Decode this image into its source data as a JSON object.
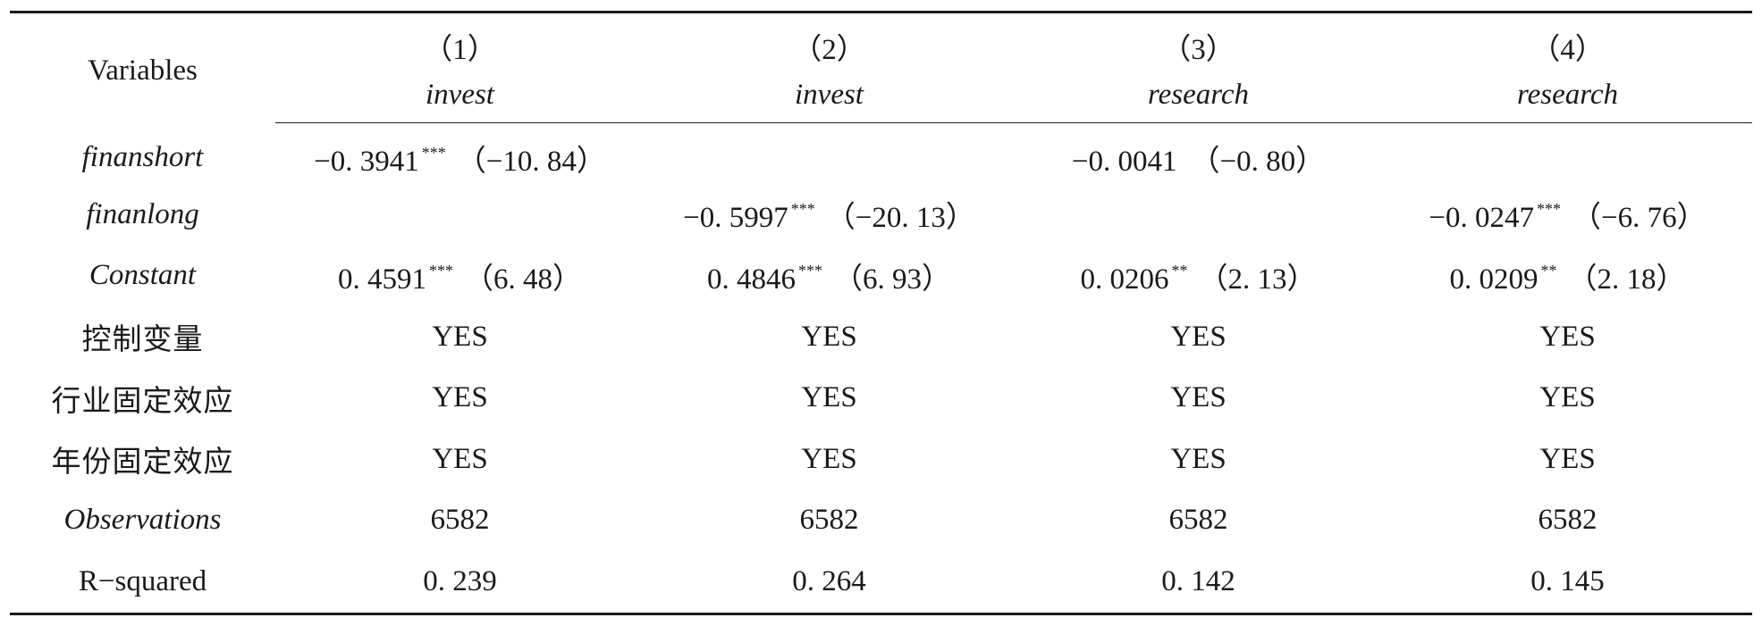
{
  "table": {
    "header": {
      "variables_label": "Variables",
      "columns": [
        {
          "number": "（1）",
          "dep_var": "invest"
        },
        {
          "number": "（2）",
          "dep_var": "invest"
        },
        {
          "number": "（3）",
          "dep_var": "research"
        },
        {
          "number": "（4）",
          "dep_var": "research"
        }
      ]
    },
    "rows": [
      {
        "label": "finanshort",
        "cells": [
          {
            "coef": "−0. 3941",
            "stars": "***",
            "t": "（−10. 84）"
          },
          {
            "coef": "",
            "stars": "",
            "t": ""
          },
          {
            "coef": "−0. 0041",
            "stars": "",
            "t": "（−0. 80）"
          },
          {
            "coef": "",
            "stars": "",
            "t": ""
          }
        ]
      },
      {
        "label": "finanlong",
        "cells": [
          {
            "coef": "",
            "stars": "",
            "t": ""
          },
          {
            "coef": "−0. 5997",
            "stars": "***",
            "t": "（−20. 13）"
          },
          {
            "coef": "",
            "stars": "",
            "t": ""
          },
          {
            "coef": "−0. 0247",
            "stars": "***",
            "t": "（−6. 76）"
          }
        ]
      },
      {
        "label": "Constant",
        "cells": [
          {
            "coef": "0. 4591",
            "stars": "***",
            "t": "（6. 48）"
          },
          {
            "coef": "0. 4846",
            "stars": "***",
            "t": "（6. 93）"
          },
          {
            "coef": "0. 0206",
            "stars": "**",
            "t": "（2. 13）"
          },
          {
            "coef": "0. 0209",
            "stars": "**",
            "t": "（2. 18）"
          }
        ]
      },
      {
        "label": "控制变量",
        "values": [
          "YES",
          "YES",
          "YES",
          "YES"
        ]
      },
      {
        "label": "行业固定效应",
        "values": [
          "YES",
          "YES",
          "YES",
          "YES"
        ]
      },
      {
        "label": "年份固定效应",
        "values": [
          "YES",
          "YES",
          "YES",
          "YES"
        ]
      },
      {
        "label": "Observations",
        "values": [
          "6582",
          "6582",
          "6582",
          "6582"
        ]
      },
      {
        "label": "R−squared",
        "values": [
          "0. 239",
          "0. 264",
          "0. 142",
          "0. 145"
        ]
      }
    ]
  }
}
